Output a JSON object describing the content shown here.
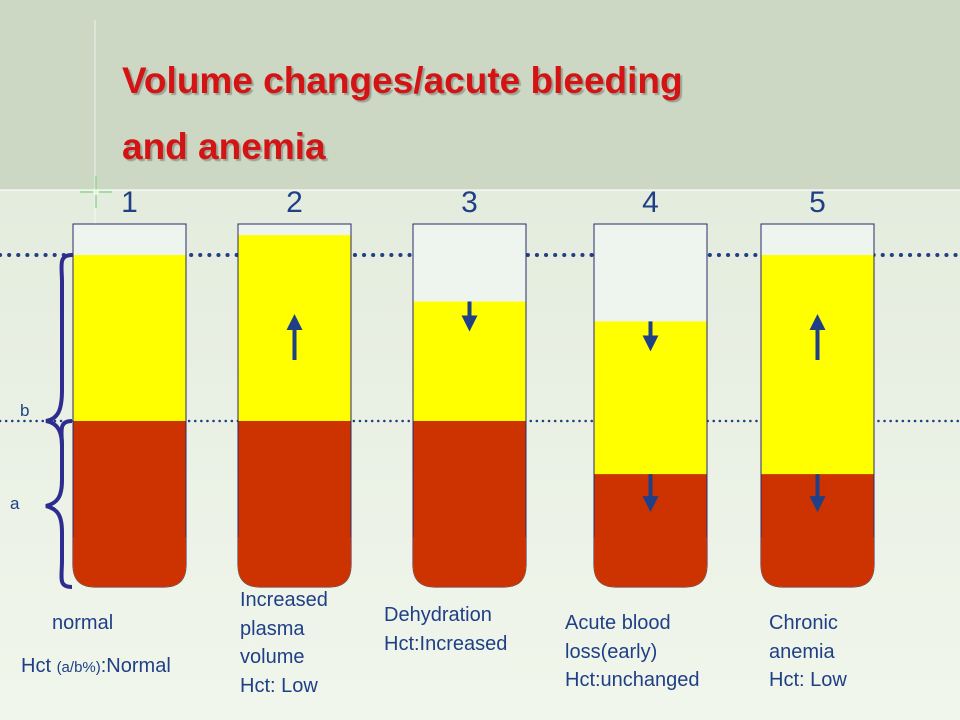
{
  "title": {
    "line1": "Volume changes/acute bleeding",
    "line2": "and anemia"
  },
  "colors": {
    "title": "#d41414",
    "plasma": "#ffff00",
    "cells": "#cc3300",
    "empty": "#eef4ee",
    "guide": "#1f3f86",
    "text": "#1f3f86"
  },
  "side_labels": {
    "b": "b",
    "a": "a"
  },
  "tubes": [
    {
      "number": "1",
      "plasma_fraction": 0.5,
      "cells_fraction": 0.5,
      "total_fraction": 1.0,
      "plasma_arrow": "none",
      "cells_arrow": "none"
    },
    {
      "number": "2",
      "plasma_fraction": 0.56,
      "cells_fraction": 0.5,
      "total_fraction": 1.06,
      "plasma_arrow": "up",
      "cells_arrow": "none"
    },
    {
      "number": "3",
      "plasma_fraction": 0.36,
      "cells_fraction": 0.5,
      "total_fraction": 0.86,
      "plasma_arrow": "down",
      "cells_arrow": "none"
    },
    {
      "number": "4",
      "plasma_fraction": 0.46,
      "cells_fraction": 0.34,
      "total_fraction": 0.8,
      "plasma_arrow": "down",
      "cells_arrow": "down"
    },
    {
      "number": "5",
      "plasma_fraction": 0.66,
      "cells_fraction": 0.34,
      "total_fraction": 1.0,
      "plasma_arrow": "up",
      "cells_arrow": "down"
    }
  ],
  "captions": {
    "t1": {
      "label": "normal",
      "hct_prefix": "Hct ",
      "hct_small": "(a/b%)",
      "hct_suffix": ":Normal"
    },
    "t2": {
      "line1": "Increased",
      "line2": "plasma",
      "line3": "volume",
      "line4": "Hct: Low"
    },
    "t3": {
      "line1": "Dehydration",
      "line2": "Hct:Increased"
    },
    "t4": {
      "line1": "Acute blood",
      "line2": "loss(early)",
      "line3": "Hct:unchanged"
    },
    "t5": {
      "line1": "Chronic",
      "line2": "anemia",
      "line3": "Hct: Low"
    }
  }
}
